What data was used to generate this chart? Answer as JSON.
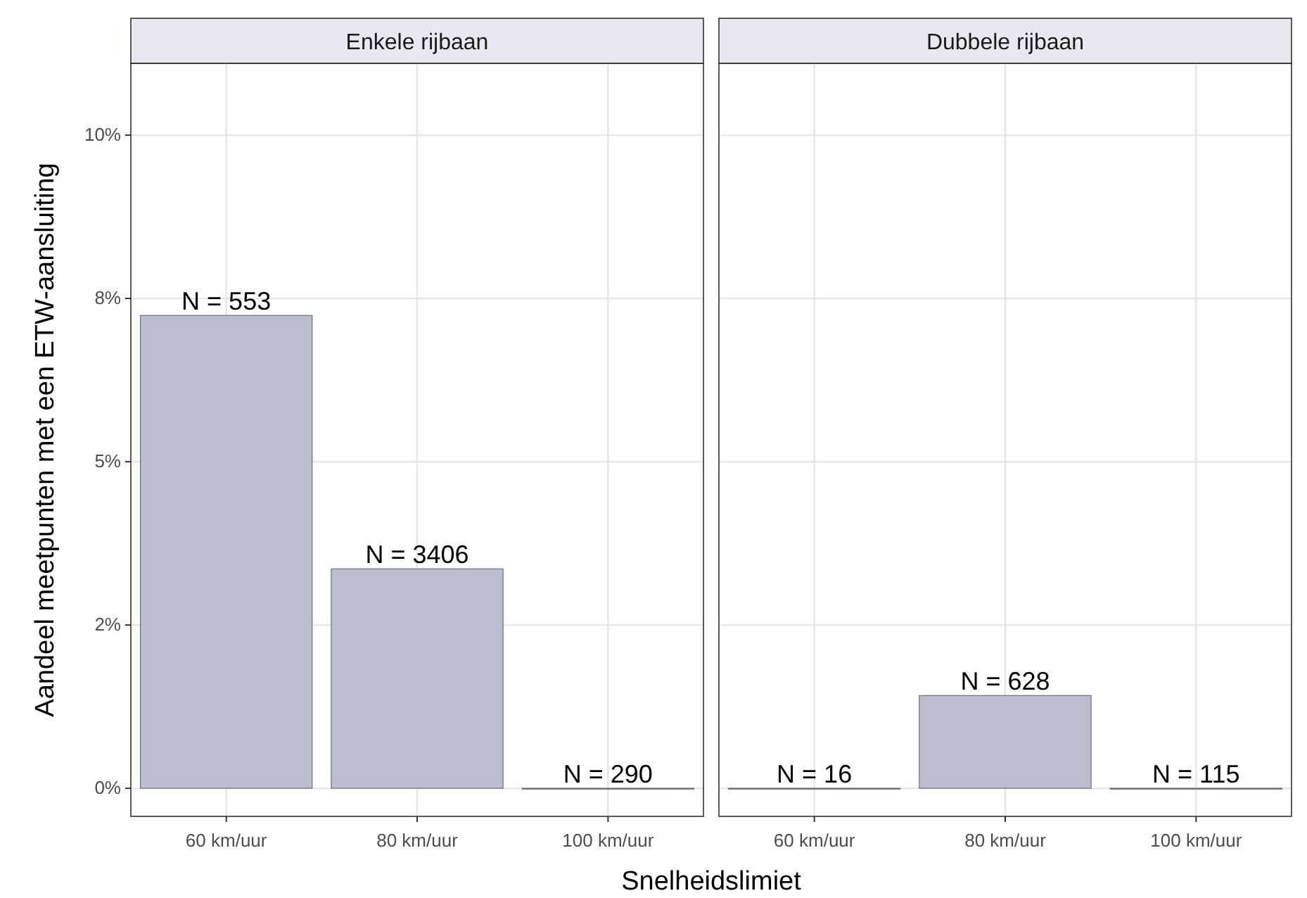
{
  "chart_data": [
    {
      "type": "bar",
      "title": "Enkele rijbaan",
      "xlabel": "Snelheidslimiet",
      "ylabel": "Aandeel meetpunten met een ETW-aansluiting",
      "categories": [
        "60 km/uur",
        "80 km/uur",
        "100 km/uur"
      ],
      "values": [
        7.24,
        3.36,
        0
      ],
      "color": "#bebdd0",
      "annotations": [
        {
          "text": "N = 553",
          "x": "60 km/uur",
          "y": 7.24
        },
        {
          "text": "N = 3406",
          "x": "80 km/uur",
          "y": 3.36
        },
        {
          "text": "N = 290",
          "x": "100 km/uur",
          "y": 0
        }
      ],
      "ylim": [
        -0.43,
        11.1
      ],
      "yticks": [
        {
          "value": 0,
          "label": "0%"
        },
        {
          "value": 2.5,
          "label": "2%"
        },
        {
          "value": 5,
          "label": "5%"
        },
        {
          "value": 7.5,
          "label": "8%"
        },
        {
          "value": 10,
          "label": "10%"
        }
      ],
      "grid": true
    },
    {
      "type": "bar",
      "title": "Dubbele rijbaan",
      "categories": [
        "60 km/uur",
        "80 km/uur",
        "100 km/uur"
      ],
      "values": [
        0,
        1.42,
        0
      ],
      "color": "#bebdd0",
      "annotations": [
        {
          "text": "N = 16",
          "x": "60 km/uur",
          "y": 0
        },
        {
          "text": "N = 628",
          "x": "80 km/uur",
          "y": 1.42
        },
        {
          "text": "N = 115",
          "x": "100 km/uur",
          "y": 0
        }
      ],
      "ylim": [
        -0.43,
        11.1
      ],
      "yticks": [
        {
          "value": 0,
          "label": null
        },
        {
          "value": 2.5,
          "label": null
        },
        {
          "value": 5,
          "label": null
        },
        {
          "value": 7.5,
          "label": null
        },
        {
          "value": 10,
          "label": null
        }
      ],
      "grid": true,
      "tick_labels": "x"
    }
  ]
}
